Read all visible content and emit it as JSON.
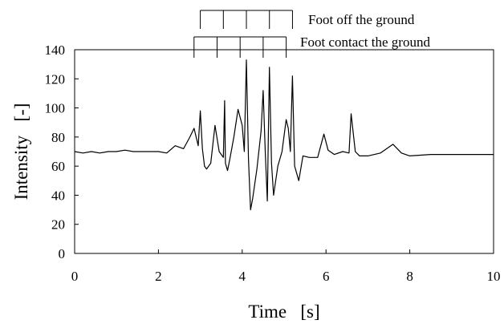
{
  "chart_data": {
    "type": "line",
    "xlabel": "Time   [s]",
    "ylabel": "Intensity   [-]",
    "xlim": [
      0,
      10
    ],
    "ylim": [
      0,
      140
    ],
    "xticks": [
      0,
      2,
      4,
      6,
      8,
      10
    ],
    "yticks": [
      0,
      20,
      40,
      60,
      80,
      100,
      120,
      140
    ],
    "grid": false,
    "series": [
      {
        "x": [
          0,
          0.2,
          0.4,
          0.6,
          0.8,
          1.0,
          1.2,
          1.4,
          1.6,
          1.8,
          2.0,
          2.2,
          2.4,
          2.6,
          2.75,
          2.85,
          2.95,
          3.0,
          3.05,
          3.1,
          3.15,
          3.25,
          3.35,
          3.45,
          3.55,
          3.58,
          3.6,
          3.65,
          3.7,
          3.8,
          3.9,
          4.0,
          4.05,
          4.1,
          4.15,
          4.2,
          4.25,
          4.35,
          4.45,
          4.5,
          4.55,
          4.6,
          4.65,
          4.7,
          4.75,
          4.85,
          4.95,
          5.05,
          5.1,
          5.15,
          5.2,
          5.25,
          5.35,
          5.45,
          5.6,
          5.8,
          5.95,
          6.05,
          6.2,
          6.4,
          6.55,
          6.6,
          6.7,
          6.8,
          7.0,
          7.3,
          7.6,
          7.8,
          8.0,
          8.5,
          9.0,
          9.5,
          10.0
        ],
        "y": [
          70,
          69,
          70,
          69,
          70,
          70,
          71,
          70,
          70,
          70,
          70,
          69,
          74,
          72,
          80,
          86,
          74,
          98,
          72,
          60,
          58,
          62,
          88,
          70,
          66,
          105,
          62,
          57,
          64,
          80,
          99,
          88,
          70,
          133,
          65,
          30,
          38,
          58,
          84,
          112,
          70,
          36,
          128,
          62,
          40,
          60,
          70,
          92,
          86,
          70,
          122,
          60,
          50,
          67,
          66,
          66,
          82,
          71,
          68,
          70,
          69,
          96,
          70,
          67,
          67,
          69,
          75,
          69,
          67,
          68,
          68,
          68,
          68
        ]
      }
    ],
    "annotations": [
      {
        "label": "Foot off the ground",
        "x": [
          3.0,
          3.55,
          4.1,
          4.65,
          5.2
        ]
      },
      {
        "label": "Foot contact the ground",
        "x": [
          2.85,
          3.4,
          3.95,
          4.5,
          5.05
        ]
      }
    ]
  }
}
